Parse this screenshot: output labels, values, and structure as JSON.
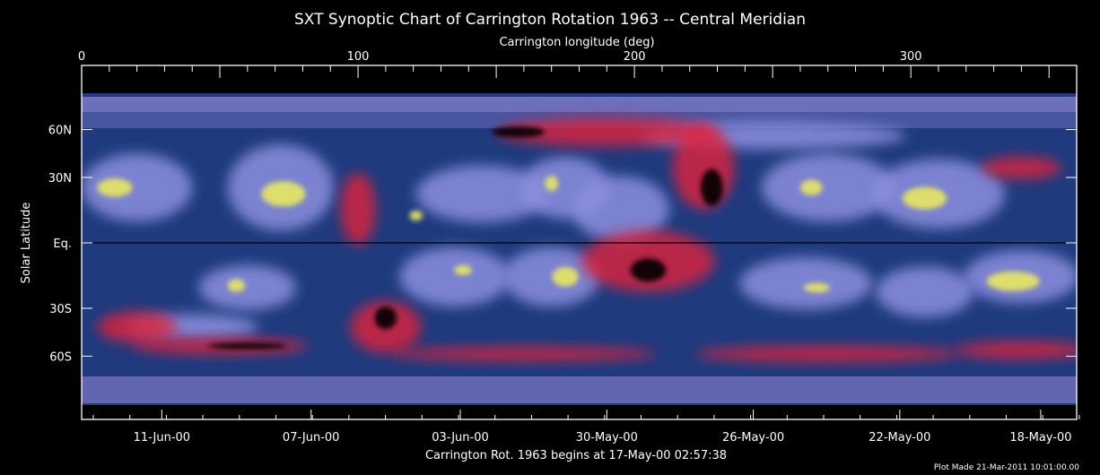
{
  "chart_data": {
    "type": "heatmap",
    "title": "SXT Synoptic Chart of Carrington Rotation 1963 -- Central Meridian",
    "xlabel_top": "Carrington longitude (deg)",
    "xlim": [
      0,
      360
    ],
    "xticks_top": [
      {
        "value": 0,
        "label": "0"
      },
      {
        "value": 100,
        "label": "100"
      },
      {
        "value": 200,
        "label": "200"
      },
      {
        "value": 300,
        "label": "300"
      }
    ],
    "ylabel": "Solar Latitude",
    "ylim": [
      -90,
      90
    ],
    "y_scale": "sine-latitude",
    "yticks": [
      {
        "value": 60,
        "label": "60N"
      },
      {
        "value": 30,
        "label": "30N"
      },
      {
        "value": 0,
        "label": "Eq."
      },
      {
        "value": -30,
        "label": "30S"
      },
      {
        "value": -60,
        "label": "60S"
      }
    ],
    "xticks_bottom": [
      {
        "value": 29,
        "label": "11-Jun-00"
      },
      {
        "value": 83,
        "label": "07-Jun-00"
      },
      {
        "value": 137,
        "label": "03-Jun-00"
      },
      {
        "value": 190,
        "label": "30-May-00"
      },
      {
        "value": 243,
        "label": "26-May-00"
      },
      {
        "value": 296,
        "label": "22-May-00"
      },
      {
        "value": 347,
        "label": "18-May-00"
      }
    ],
    "xlabel_bottom": "Carrington Rot. 1963 begins at 17-May-00 02:57:38",
    "footer": "Plot Made 21-Mar-2011 10:01:00.00",
    "colors": {
      "background": "#1f3b7e",
      "bright": "#8c8fe0",
      "active": "#e8e860",
      "hole": "#e0203a",
      "void": "#000000"
    },
    "features": [
      {
        "kind": "bright",
        "lon": 20,
        "lat": 25,
        "dlon": 25,
        "dlat": 22
      },
      {
        "kind": "bright",
        "lon": 72,
        "lat": 25,
        "dlon": 24,
        "dlat": 28
      },
      {
        "kind": "bright",
        "lon": 145,
        "lat": 22,
        "dlon": 30,
        "dlat": 18
      },
      {
        "kind": "bright",
        "lon": 175,
        "lat": 25,
        "dlon": 20,
        "dlat": 20
      },
      {
        "kind": "bright",
        "lon": 195,
        "lat": 15,
        "dlon": 22,
        "dlat": 20
      },
      {
        "kind": "bright",
        "lon": 270,
        "lat": 25,
        "dlon": 30,
        "dlat": 22
      },
      {
        "kind": "bright",
        "lon": 310,
        "lat": 22,
        "dlon": 30,
        "dlat": 22
      },
      {
        "kind": "bright",
        "lon": 340,
        "lat": -15,
        "dlon": 26,
        "dlat": 16
      },
      {
        "kind": "bright",
        "lon": 60,
        "lat": -20,
        "dlon": 22,
        "dlat": 14
      },
      {
        "kind": "bright",
        "lon": 135,
        "lat": -15,
        "dlon": 25,
        "dlat": 18
      },
      {
        "kind": "bright",
        "lon": 170,
        "lat": -15,
        "dlon": 22,
        "dlat": 18
      },
      {
        "kind": "bright",
        "lon": 262,
        "lat": -18,
        "dlon": 30,
        "dlat": 16
      },
      {
        "kind": "bright",
        "lon": 305,
        "lat": -22,
        "dlon": 22,
        "dlat": 16
      },
      {
        "kind": "bright",
        "lon": 250,
        "lat": 55,
        "dlon": 60,
        "dlat": 14
      },
      {
        "kind": "bright",
        "lon": 40,
        "lat": -40,
        "dlon": 30,
        "dlat": 10
      },
      {
        "kind": "hole",
        "lon": 190,
        "lat": 58,
        "dlon": 50,
        "dlat": 16
      },
      {
        "kind": "hole",
        "lon": 225,
        "lat": 35,
        "dlon": 14,
        "dlat": 30
      },
      {
        "kind": "hole",
        "lon": 205,
        "lat": -8,
        "dlon": 30,
        "dlat": 18
      },
      {
        "kind": "hole",
        "lon": 110,
        "lat": -40,
        "dlon": 16,
        "dlat": 20
      },
      {
        "kind": "hole",
        "lon": 100,
        "lat": 15,
        "dlon": 8,
        "dlat": 22
      },
      {
        "kind": "hole",
        "lon": 50,
        "lat": -52,
        "dlon": 40,
        "dlat": 8
      },
      {
        "kind": "hole",
        "lon": 20,
        "lat": -40,
        "dlon": 18,
        "dlat": 12
      },
      {
        "kind": "hole",
        "lon": 160,
        "lat": -58,
        "dlon": 60,
        "dlat": 8
      },
      {
        "kind": "hole",
        "lon": 270,
        "lat": -58,
        "dlon": 60,
        "dlat": 9
      },
      {
        "kind": "hole",
        "lon": 340,
        "lat": -55,
        "dlon": 30,
        "dlat": 9
      },
      {
        "kind": "hole",
        "lon": 340,
        "lat": 35,
        "dlon": 18,
        "dlat": 8
      },
      {
        "kind": "void",
        "lon": 158,
        "lat": 58,
        "dlon": 12,
        "dlat": 6
      },
      {
        "kind": "void",
        "lon": 228,
        "lat": 25,
        "dlon": 5,
        "dlat": 12
      },
      {
        "kind": "void",
        "lon": 205,
        "lat": -12,
        "dlon": 8,
        "dlat": 7
      },
      {
        "kind": "void",
        "lon": 60,
        "lat": -52,
        "dlon": 18,
        "dlat": 3
      },
      {
        "kind": "void",
        "lon": 110,
        "lat": -35,
        "dlon": 5,
        "dlat": 8
      },
      {
        "kind": "active",
        "lon": 12,
        "lat": 25,
        "dlon": 8,
        "dlat": 6
      },
      {
        "kind": "active",
        "lon": 73,
        "lat": 22,
        "dlon": 10,
        "dlat": 8
      },
      {
        "kind": "active",
        "lon": 175,
        "lat": -15,
        "dlon": 6,
        "dlat": 6
      },
      {
        "kind": "active",
        "lon": 264,
        "lat": 25,
        "dlon": 5,
        "dlat": 5
      },
      {
        "kind": "active",
        "lon": 305,
        "lat": 20,
        "dlon": 10,
        "dlat": 7
      },
      {
        "kind": "active",
        "lon": 337,
        "lat": -17,
        "dlon": 12,
        "dlat": 6
      },
      {
        "kind": "active",
        "lon": 56,
        "lat": -19,
        "dlon": 4,
        "dlat": 4
      },
      {
        "kind": "active",
        "lon": 138,
        "lat": -12,
        "dlon": 4,
        "dlat": 3
      },
      {
        "kind": "active",
        "lon": 266,
        "lat": -20,
        "dlon": 6,
        "dlat": 3
      },
      {
        "kind": "active",
        "lon": 170,
        "lat": 27,
        "dlon": 3,
        "dlat": 5
      },
      {
        "kind": "active",
        "lon": 121,
        "lat": 12,
        "dlon": 3,
        "dlat": 3
      }
    ]
  }
}
